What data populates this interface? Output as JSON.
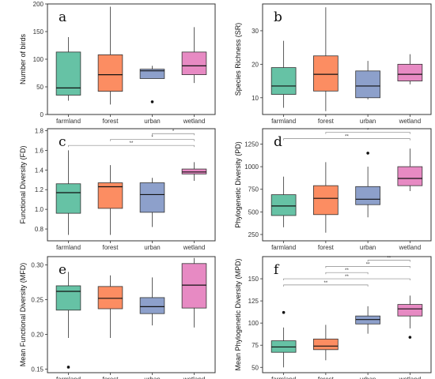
{
  "chart_data": [
    {
      "type": "box",
      "panel_label": "a",
      "ylabel": "Number of birds",
      "categories": [
        "farmland",
        "forest",
        "urban",
        "wetland"
      ],
      "colors": [
        "#66c2a5",
        "#fc8d62",
        "#8da0cb",
        "#e78ac3"
      ],
      "ylim": [
        0,
        200
      ],
      "yticks": [
        0,
        50,
        100,
        150,
        200
      ],
      "ytick_labels": [
        "0",
        "50",
        "100",
        "150",
        "200"
      ],
      "boxes": [
        {
          "min": 25,
          "q1": 35,
          "median": 48,
          "q3": 113,
          "max": 140,
          "outliers": []
        },
        {
          "min": 18,
          "q1": 42,
          "median": 72,
          "q3": 108,
          "max": 195,
          "outliers": []
        },
        {
          "min": 65,
          "q1": 65,
          "median": 79,
          "q3": 82,
          "max": 88,
          "outliers": [
            23
          ]
        },
        {
          "min": 57,
          "q1": 72,
          "median": 88,
          "q3": 113,
          "max": 158,
          "outliers": []
        }
      ],
      "significance": []
    },
    {
      "type": "box",
      "panel_label": "b",
      "ylabel": "Species Richness (SR)",
      "categories": [
        "farmland",
        "forest",
        "urban",
        "wetland"
      ],
      "colors": [
        "#66c2a5",
        "#fc8d62",
        "#8da0cb",
        "#e78ac3"
      ],
      "ylim": [
        5,
        38
      ],
      "yticks": [
        10,
        20,
        30
      ],
      "ytick_labels": [
        "10",
        "20",
        "30"
      ],
      "boxes": [
        {
          "min": 7,
          "q1": 11,
          "median": 13.5,
          "q3": 19,
          "max": 27,
          "outliers": []
        },
        {
          "min": 6,
          "q1": 12,
          "median": 17,
          "q3": 22.5,
          "max": 37,
          "outliers": []
        },
        {
          "min": 9.5,
          "q1": 10,
          "median": 13.5,
          "q3": 18,
          "max": 21,
          "outliers": []
        },
        {
          "min": 14,
          "q1": 15,
          "median": 17,
          "q3": 20,
          "max": 23,
          "outliers": []
        }
      ],
      "significance": []
    },
    {
      "type": "box",
      "panel_label": "c",
      "ylabel": "Functional Diversity (FD)",
      "categories": [
        "farmland",
        "forest",
        "urban",
        "wetland"
      ],
      "colors": [
        "#66c2a5",
        "#fc8d62",
        "#8da0cb",
        "#e78ac3"
      ],
      "ylim": [
        0.68,
        1.82
      ],
      "yticks": [
        0.8,
        1.0,
        1.2,
        1.4,
        1.6,
        1.8
      ],
      "ytick_labels": [
        "0.8",
        "1.0",
        "1.2",
        "1.4",
        "1.6",
        "1.8"
      ],
      "boxes": [
        {
          "min": 0.74,
          "q1": 0.96,
          "median": 1.17,
          "q3": 1.26,
          "max": 1.6,
          "outliers": []
        },
        {
          "min": 0.74,
          "q1": 1.01,
          "median": 1.23,
          "q3": 1.27,
          "max": 1.45,
          "outliers": []
        },
        {
          "min": 0.82,
          "q1": 0.97,
          "median": 1.15,
          "q3": 1.27,
          "max": 1.32,
          "outliers": []
        },
        {
          "min": 1.29,
          "q1": 1.36,
          "median": 1.38,
          "q3": 1.41,
          "max": 1.48,
          "outliers": []
        }
      ],
      "significance": [
        {
          "from": 0,
          "to": 3,
          "level": 1.65,
          "label": "**"
        },
        {
          "from": 1,
          "to": 3,
          "level": 1.71,
          "label": "*"
        },
        {
          "from": 2,
          "to": 3,
          "level": 1.77,
          "label": "*"
        }
      ]
    },
    {
      "type": "box",
      "panel_label": "d",
      "ylabel": "Phylogenetic Diversity (PD)",
      "categories": [
        "farmland",
        "forest",
        "urban",
        "wetland"
      ],
      "colors": [
        "#66c2a5",
        "#fc8d62",
        "#8da0cb",
        "#e78ac3"
      ],
      "ylim": [
        180,
        1420
      ],
      "yticks": [
        250,
        500,
        750,
        1000,
        1250
      ],
      "ytick_labels": [
        "250",
        "500",
        "750",
        "1000",
        "1250"
      ],
      "boxes": [
        {
          "min": 330,
          "q1": 460,
          "median": 565,
          "q3": 690,
          "max": 890,
          "outliers": []
        },
        {
          "min": 270,
          "q1": 470,
          "median": 650,
          "q3": 790,
          "max": 1050,
          "outliers": []
        },
        {
          "min": 440,
          "q1": 580,
          "median": 640,
          "q3": 780,
          "max": 1000,
          "outliers": [
            1150
          ]
        },
        {
          "min": 730,
          "q1": 790,
          "median": 870,
          "q3": 1000,
          "max": 1200,
          "outliers": []
        }
      ],
      "significance": [
        {
          "from": 0,
          "to": 3,
          "level": 1310,
          "label": "**"
        },
        {
          "from": 1,
          "to": 3,
          "level": 1380,
          "label": "*"
        }
      ]
    },
    {
      "type": "box",
      "panel_label": "e",
      "ylabel": "Mean Functional Diversity (MFD)",
      "categories": [
        "farmland",
        "forest",
        "urban",
        "wetland"
      ],
      "colors": [
        "#66c2a5",
        "#fc8d62",
        "#8da0cb",
        "#e78ac3"
      ],
      "ylim": [
        0.145,
        0.312
      ],
      "yticks": [
        0.15,
        0.2,
        0.25,
        0.3
      ],
      "ytick_labels": [
        "0.15",
        "0.20",
        "0.25",
        "0.30"
      ],
      "boxes": [
        {
          "min": 0.195,
          "q1": 0.235,
          "median": 0.262,
          "q3": 0.27,
          "max": 0.29,
          "outliers": [
            0.153
          ]
        },
        {
          "min": 0.195,
          "q1": 0.237,
          "median": 0.252,
          "q3": 0.269,
          "max": 0.285,
          "outliers": []
        },
        {
          "min": 0.213,
          "q1": 0.23,
          "median": 0.24,
          "q3": 0.253,
          "max": 0.282,
          "outliers": []
        },
        {
          "min": 0.21,
          "q1": 0.238,
          "median": 0.271,
          "q3": 0.302,
          "max": 0.31,
          "outliers": []
        }
      ],
      "significance": []
    },
    {
      "type": "box",
      "panel_label": "f",
      "ylabel": "Mean Phylogenetic Diversity (MPD)",
      "categories": [
        "farmland",
        "forest",
        "urban",
        "wetland"
      ],
      "colors": [
        "#66c2a5",
        "#fc8d62",
        "#8da0cb",
        "#e78ac3"
      ],
      "ylim": [
        44,
        175
      ],
      "yticks": [
        50,
        75,
        100,
        125,
        150
      ],
      "ytick_labels": [
        "50",
        "75",
        "100",
        "125",
        "150"
      ],
      "boxes": [
        {
          "min": 50,
          "q1": 67,
          "median": 73,
          "q3": 80,
          "max": 95,
          "outliers": [
            112
          ]
        },
        {
          "min": 58,
          "q1": 70,
          "median": 74,
          "q3": 82,
          "max": 98,
          "outliers": []
        },
        {
          "min": 88,
          "q1": 99,
          "median": 104,
          "q3": 108,
          "max": 119,
          "outliers": []
        },
        {
          "min": 94,
          "q1": 108,
          "median": 116,
          "q3": 121,
          "max": 131,
          "outliers": [
            84
          ]
        }
      ],
      "significance": [
        {
          "from": 0,
          "to": 2,
          "level": 143,
          "label": "**"
        },
        {
          "from": 0,
          "to": 3,
          "level": 150,
          "label": "**"
        },
        {
          "from": 1,
          "to": 2,
          "level": 157,
          "label": "**"
        },
        {
          "from": 1,
          "to": 3,
          "level": 164,
          "label": "**"
        },
        {
          "from": 2,
          "to": 3,
          "level": 171,
          "label": "**"
        }
      ]
    }
  ]
}
